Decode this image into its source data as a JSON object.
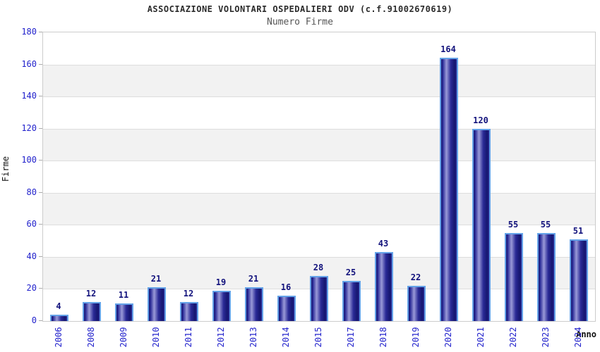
{
  "chart_data": {
    "type": "bar",
    "title": "ASSOCIAZIONE VOLONTARI OSPEDALIERI ODV (c.f.91002670619)",
    "subtitle": "Numero Firme",
    "xlabel": "Anno",
    "ylabel": "Firme",
    "categories": [
      "2006",
      "2008",
      "2009",
      "2010",
      "2011",
      "2012",
      "2013",
      "2014",
      "2015",
      "2017",
      "2018",
      "2019",
      "2020",
      "2021",
      "2022",
      "2023",
      "2024"
    ],
    "values": [
      4,
      12,
      11,
      21,
      12,
      19,
      21,
      16,
      28,
      25,
      43,
      22,
      164,
      120,
      55,
      55,
      51
    ],
    "ylim": [
      0,
      180
    ],
    "ytick_step": 20,
    "yticks": [
      0,
      20,
      40,
      60,
      80,
      100,
      120,
      140,
      160,
      180
    ],
    "legend": "none",
    "grid": "horizontal gridlines with alternating shaded bands every 20 units",
    "colors": {
      "title_color": "#2b2b2b",
      "subtitle_color": "#555555",
      "tick_label": "#2222cc",
      "value_label": "#12127c",
      "axis_title_color": "#111111",
      "bar_border": "#64a2e8",
      "bar_gradient_dark": "#15156e",
      "bar_gradient_mid": "#2a2a96",
      "bar_gradient_light": "#9a9ad8",
      "band_gray": "#f2f2f2",
      "grid_line": "#dddddd",
      "frame": "#cccccc",
      "tick_mark": "#aaaaaa",
      "background": "#ffffff"
    }
  }
}
